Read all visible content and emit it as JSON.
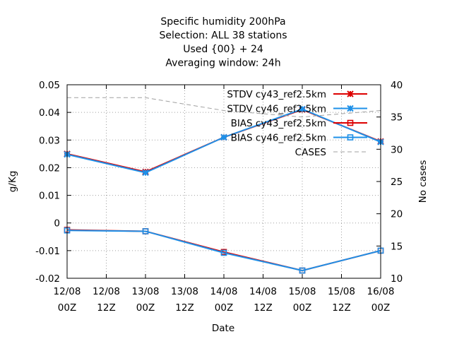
{
  "chart_data": {
    "type": "line",
    "title_lines": [
      "Specific humidity 200hPa",
      "Selection: ALL     38 stations",
      "Used {00} + 24",
      "Averaging window: 24h"
    ],
    "xlabel": "Date",
    "ylabel": "g/Kg",
    "y2label": "No cases",
    "x_ticks": [
      [
        "12/08",
        "00Z"
      ],
      [
        "12/08",
        "12Z"
      ],
      [
        "13/08",
        "00Z"
      ],
      [
        "13/08",
        "12Z"
      ],
      [
        "14/08",
        "00Z"
      ],
      [
        "14/08",
        "12Z"
      ],
      [
        "15/08",
        "00Z"
      ],
      [
        "15/08",
        "12Z"
      ],
      [
        "16/08",
        "00Z"
      ]
    ],
    "ylim": [
      -0.02,
      0.05
    ],
    "y_ticks": [
      "-0.02",
      "-0.01",
      "0",
      "0.01",
      "0.02",
      "0.03",
      "0.04",
      "0.05"
    ],
    "y2lim": [
      10,
      40
    ],
    "y2_ticks": [
      "10",
      "15",
      "20",
      "25",
      "30",
      "35",
      "40"
    ],
    "grid": true,
    "legend_position": "top-right",
    "series": [
      {
        "name": "STDV cy43_ref2.5km",
        "axis": "left",
        "color": "#dd0000",
        "marker": "star",
        "x": [
          0,
          2,
          4,
          6,
          8
        ],
        "values": [
          0.025,
          0.0185,
          0.031,
          0.041,
          0.0295
        ]
      },
      {
        "name": "STDV cy46_ref2.5km",
        "axis": "left",
        "color": "#1e90e8",
        "marker": "star",
        "x": [
          0,
          2,
          4,
          6,
          8
        ],
        "values": [
          0.0248,
          0.0182,
          0.031,
          0.0412,
          0.0293
        ]
      },
      {
        "name": "BIAS cy43_ref2.5km",
        "axis": "left",
        "color": "#dd0000",
        "marker": "square",
        "x": [
          0,
          2,
          4,
          6,
          8
        ],
        "values": [
          -0.0025,
          -0.003,
          -0.0105,
          -0.0172,
          -0.01
        ]
      },
      {
        "name": "BIAS cy46_ref2.5km",
        "axis": "left",
        "color": "#1e90e8",
        "marker": "square",
        "x": [
          0,
          2,
          4,
          6,
          8
        ],
        "values": [
          -0.0027,
          -0.003,
          -0.0108,
          -0.0172,
          -0.01
        ]
      },
      {
        "name": "CASES",
        "axis": "right",
        "color": "#a0a0a0",
        "marker": "none",
        "dashed": true,
        "x": [
          0,
          2,
          4,
          6,
          8
        ],
        "values": [
          38,
          38,
          36,
          35,
          36
        ]
      }
    ]
  }
}
